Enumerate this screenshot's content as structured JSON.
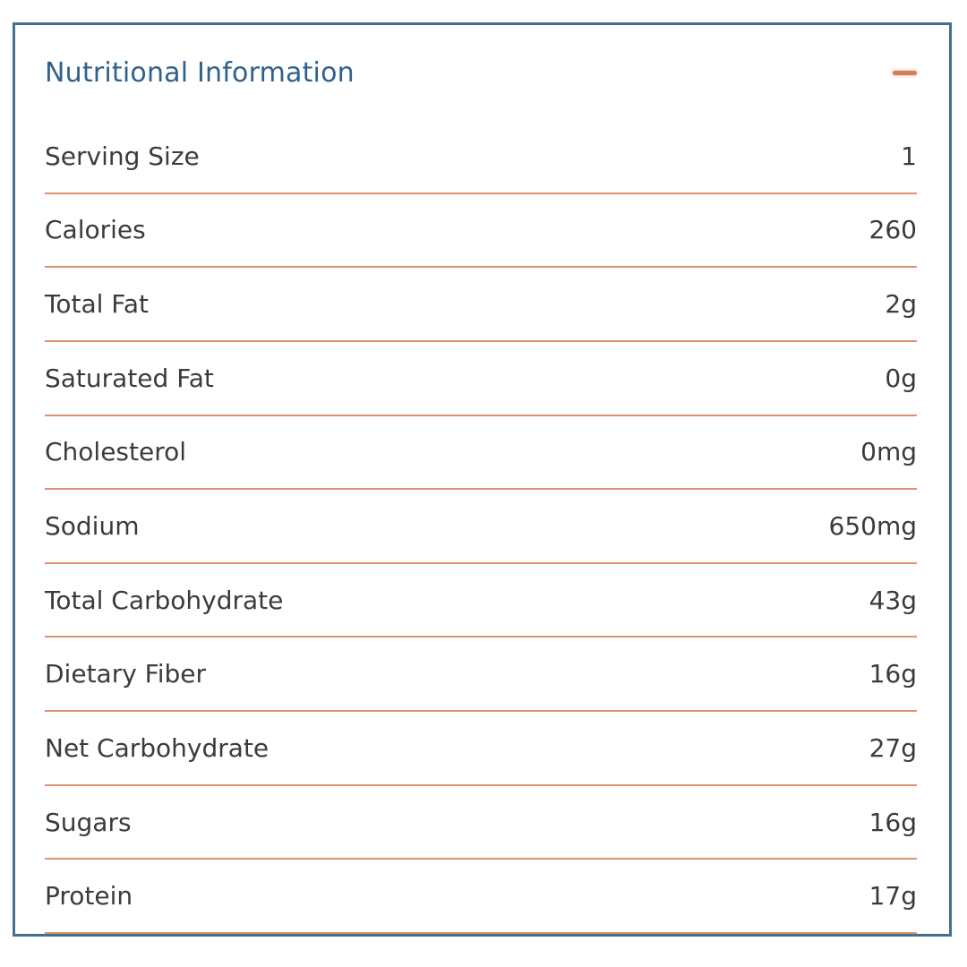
{
  "panel": {
    "title": "Nutritional Information",
    "collapse_icon": "minus-dash",
    "state": "expanded",
    "colors": {
      "border": "#44708f",
      "title": "#30618a",
      "divider": "#df9273",
      "text": "#3b3b3b",
      "accent": "#d57b5c"
    },
    "rows": [
      {
        "label": "Serving Size",
        "value": "1"
      },
      {
        "label": "Calories",
        "value": "260"
      },
      {
        "label": "Total Fat",
        "value": "2g"
      },
      {
        "label": "Saturated Fat",
        "value": "0g"
      },
      {
        "label": "Cholesterol",
        "value": "0mg"
      },
      {
        "label": "Sodium",
        "value": "650mg"
      },
      {
        "label": "Total Carbohydrate",
        "value": "43g"
      },
      {
        "label": "Dietary Fiber",
        "value": "16g"
      },
      {
        "label": "Net Carbohydrate",
        "value": "27g"
      },
      {
        "label": "Sugars",
        "value": "16g"
      },
      {
        "label": "Protein",
        "value": "17g"
      }
    ]
  }
}
